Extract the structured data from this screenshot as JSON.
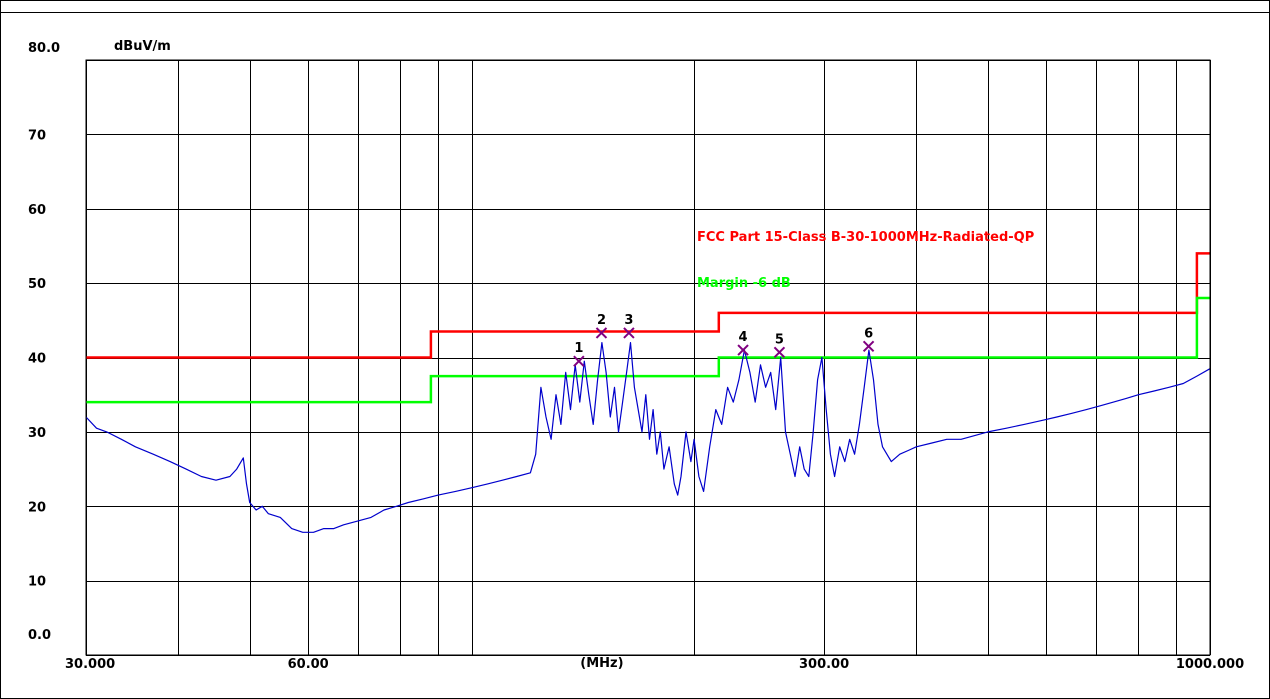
{
  "chart_data": {
    "type": "line",
    "title": "",
    "ylabel": "dBuV/m",
    "xlabel": "(MHz)",
    "x_scale": "log",
    "xlim": [
      30,
      1000
    ],
    "ylim": [
      0,
      80
    ],
    "grid": true,
    "x_tick_labels": [
      {
        "value": 30,
        "label": "30.000"
      },
      {
        "value": 60,
        "label": "60.00"
      },
      {
        "value": 300,
        "label": "300.00"
      },
      {
        "value": 1000,
        "label": "1000.000"
      }
    ],
    "x_unit_at": 150,
    "x_gridlines": [
      30,
      40,
      50,
      60,
      70,
      80,
      90,
      100,
      200,
      300,
      400,
      500,
      600,
      700,
      800,
      900,
      1000
    ],
    "y_tick_labels": [
      {
        "value": 80,
        "label": "80.0"
      },
      {
        "value": 70,
        "label": "70"
      },
      {
        "value": 60,
        "label": "60"
      },
      {
        "value": 50,
        "label": "50"
      },
      {
        "value": 40,
        "label": "40"
      },
      {
        "value": 30,
        "label": "30"
      },
      {
        "value": 20,
        "label": "20"
      },
      {
        "value": 10,
        "label": "10"
      },
      {
        "value": 0,
        "label": "0.0"
      }
    ],
    "limit_lines": [
      {
        "name": "FCC Part 15-Class B-30-1000MHz-Radiated-QP",
        "color": "#ff0000",
        "points": [
          [
            30,
            40
          ],
          [
            88,
            40
          ],
          [
            88,
            43.5
          ],
          [
            216,
            43.5
          ],
          [
            216,
            46
          ],
          [
            960,
            46
          ],
          [
            960,
            54
          ],
          [
            1000,
            54
          ]
        ]
      },
      {
        "name": "Margin -6 dB",
        "color": "#00ff00",
        "points": [
          [
            30,
            34
          ],
          [
            88,
            34
          ],
          [
            88,
            37.5
          ],
          [
            216,
            37.5
          ],
          [
            216,
            40
          ],
          [
            960,
            40
          ],
          [
            960,
            48
          ],
          [
            1000,
            48
          ]
        ]
      }
    ],
    "series": [
      {
        "name": "",
        "color": "#0000cc",
        "points": [
          [
            30,
            32
          ],
          [
            31,
            30.5
          ],
          [
            32,
            30
          ],
          [
            33.5,
            29
          ],
          [
            35,
            28
          ],
          [
            37,
            27
          ],
          [
            39,
            26
          ],
          [
            41,
            25
          ],
          [
            43,
            24
          ],
          [
            45,
            23.5
          ],
          [
            47,
            24
          ],
          [
            48,
            25
          ],
          [
            49,
            26.5
          ],
          [
            49.5,
            23
          ],
          [
            50,
            20.5
          ],
          [
            51,
            19.5
          ],
          [
            52,
            20
          ],
          [
            53,
            19
          ],
          [
            55,
            18.5
          ],
          [
            57,
            17
          ],
          [
            59,
            16.5
          ],
          [
            61,
            16.5
          ],
          [
            63,
            17
          ],
          [
            65,
            17
          ],
          [
            67,
            17.5
          ],
          [
            70,
            18
          ],
          [
            73,
            18.5
          ],
          [
            76,
            19.5
          ],
          [
            79,
            20
          ],
          [
            82,
            20.5
          ],
          [
            86,
            21
          ],
          [
            90,
            21.5
          ],
          [
            95,
            22
          ],
          [
            100,
            22.5
          ],
          [
            105,
            23
          ],
          [
            110,
            23.5
          ],
          [
            115,
            24
          ],
          [
            120,
            24.5
          ],
          [
            122,
            27
          ],
          [
            124,
            36
          ],
          [
            126,
            32
          ],
          [
            128,
            29
          ],
          [
            130,
            35
          ],
          [
            132,
            31
          ],
          [
            134,
            38
          ],
          [
            136,
            33
          ],
          [
            138,
            39
          ],
          [
            140,
            34
          ],
          [
            142,
            39.5
          ],
          [
            144,
            35
          ],
          [
            146,
            31
          ],
          [
            148,
            37
          ],
          [
            150,
            42
          ],
          [
            152,
            38
          ],
          [
            154,
            32
          ],
          [
            156,
            36
          ],
          [
            158,
            30
          ],
          [
            160,
            34
          ],
          [
            162,
            38
          ],
          [
            164,
            42
          ],
          [
            166,
            36
          ],
          [
            168,
            33
          ],
          [
            170,
            30
          ],
          [
            172,
            35
          ],
          [
            174,
            29
          ],
          [
            176,
            33
          ],
          [
            178,
            27
          ],
          [
            180,
            30
          ],
          [
            182,
            25
          ],
          [
            185,
            28
          ],
          [
            188,
            23
          ],
          [
            190,
            21.5
          ],
          [
            192,
            24
          ],
          [
            195,
            30
          ],
          [
            198,
            26
          ],
          [
            200,
            29
          ],
          [
            203,
            24
          ],
          [
            206,
            22
          ],
          [
            210,
            28
          ],
          [
            214,
            33
          ],
          [
            218,
            31
          ],
          [
            222,
            36
          ],
          [
            226,
            34
          ],
          [
            230,
            37
          ],
          [
            234,
            41
          ],
          [
            238,
            38
          ],
          [
            242,
            34
          ],
          [
            246,
            39
          ],
          [
            250,
            36
          ],
          [
            254,
            38
          ],
          [
            258,
            33
          ],
          [
            262,
            40
          ],
          [
            266,
            30
          ],
          [
            270,
            27
          ],
          [
            274,
            24
          ],
          [
            278,
            28
          ],
          [
            282,
            25
          ],
          [
            286,
            24
          ],
          [
            290,
            30
          ],
          [
            294,
            37
          ],
          [
            298,
            40
          ],
          [
            302,
            33
          ],
          [
            306,
            27
          ],
          [
            310,
            24
          ],
          [
            315,
            28
          ],
          [
            320,
            26
          ],
          [
            325,
            29
          ],
          [
            330,
            27
          ],
          [
            335,
            31
          ],
          [
            340,
            36
          ],
          [
            345,
            41
          ],
          [
            350,
            37
          ],
          [
            355,
            31
          ],
          [
            360,
            28
          ],
          [
            370,
            26
          ],
          [
            380,
            27
          ],
          [
            390,
            27.5
          ],
          [
            400,
            28
          ],
          [
            420,
            28.5
          ],
          [
            440,
            29
          ],
          [
            460,
            29
          ],
          [
            480,
            29.5
          ],
          [
            500,
            30
          ],
          [
            530,
            30.5
          ],
          [
            560,
            31
          ],
          [
            590,
            31.5
          ],
          [
            620,
            32
          ],
          [
            650,
            32.5
          ],
          [
            680,
            33
          ],
          [
            710,
            33.5
          ],
          [
            740,
            34
          ],
          [
            770,
            34.5
          ],
          [
            800,
            35
          ],
          [
            840,
            35.5
          ],
          [
            880,
            36
          ],
          [
            920,
            36.5
          ],
          [
            960,
            37.5
          ],
          [
            1000,
            38.5
          ]
        ]
      }
    ],
    "markers": [
      {
        "label": "1",
        "x": 139.6,
        "y": 39.5
      },
      {
        "label": "2",
        "x": 149.8,
        "y": 43.3
      },
      {
        "label": "3",
        "x": 163.2,
        "y": 43.3
      },
      {
        "label": "4",
        "x": 233.0,
        "y": 41.0
      },
      {
        "label": "5",
        "x": 261.0,
        "y": 40.7
      },
      {
        "label": "6",
        "x": 344.7,
        "y": 41.5
      }
    ]
  }
}
